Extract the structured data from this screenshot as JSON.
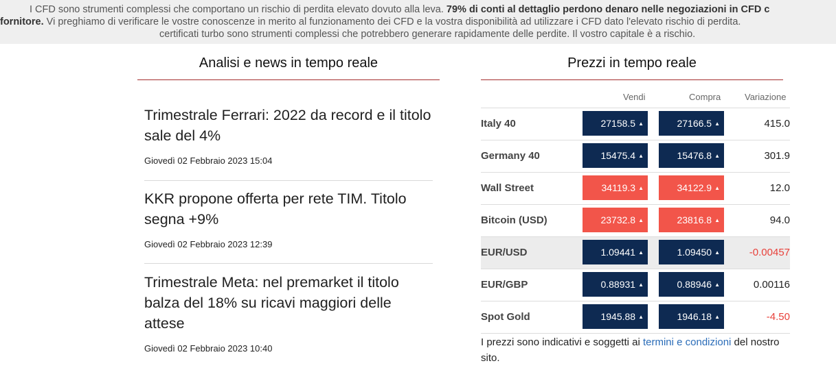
{
  "banner": {
    "part1": "I CFD sono strumenti complessi che comportano un rischio di perdita elevato dovuto alla leva.",
    "bold1": "79% di conti al dettaglio perdono denaro nelle negoziazioni in CFD c",
    "bold2": "fornitore.",
    "part2": "Vi preghiamo di verificare le vostre conoscenze in merito al funzionamento dei CFD e la vostra disponibilità ad utilizzare i CFD dato l'elevato rischio di perdita.",
    "part3": "certificati turbo sono strumenti complessi che potrebbero generare rapidamente delle perdite. Il vostro capitale è a rischio."
  },
  "news": {
    "title": "Analisi e news in tempo reale",
    "items": [
      {
        "title": "Trimestrale Ferrari: 2022 da record e il titolo sale del 4%",
        "date": "Giovedì 02 Febbraio 2023 15:04"
      },
      {
        "title": "KKR propone offerta per rete TIM. Titolo segna +9%",
        "date": "Giovedì 02 Febbraio 2023 12:39"
      },
      {
        "title": "Trimestrale Meta: nel premarket il titolo balza del 18% su ricavi maggiori delle attese",
        "date": "Giovedì 02 Febbraio 2023 10:40"
      }
    ]
  },
  "prices": {
    "title": "Prezzi in tempo reale",
    "headers": {
      "sell": "Vendi",
      "buy": "Compra",
      "change": "Variazione"
    },
    "rows": [
      {
        "name": "Italy 40",
        "sell": "27158.5",
        "buy": "27166.5",
        "change": "415.0",
        "color": "navy",
        "neg": false
      },
      {
        "name": "Germany 40",
        "sell": "15475.4",
        "buy": "15476.8",
        "change": "301.9",
        "color": "navy",
        "neg": false
      },
      {
        "name": "Wall Street",
        "sell": "34119.3",
        "buy": "34122.9",
        "change": "12.0",
        "color": "red",
        "neg": false
      },
      {
        "name": "Bitcoin (USD)",
        "sell": "23732.8",
        "buy": "23816.8",
        "change": "94.0",
        "color": "red",
        "neg": false
      },
      {
        "name": "EUR/USD",
        "sell": "1.09441",
        "buy": "1.09450",
        "change": "-0.00457",
        "color": "navy",
        "neg": true
      },
      {
        "name": "EUR/GBP",
        "sell": "0.88931",
        "buy": "0.88946",
        "change": "0.00116",
        "color": "navy",
        "neg": false
      },
      {
        "name": "Spot Gold",
        "sell": "1945.88",
        "buy": "1946.18",
        "change": "-4.50",
        "color": "navy",
        "neg": true
      }
    ],
    "disclaimer": {
      "before": "I prezzi sono indicativi e soggetti ai",
      "link": "termini e condizioni",
      "after": "del nostro sito."
    }
  },
  "colors": {
    "navy": "#0e2a52",
    "red": "#f2554a",
    "accent_rule": "#a42b2b",
    "link": "#2a6cb8",
    "negative": "#e8403a"
  }
}
